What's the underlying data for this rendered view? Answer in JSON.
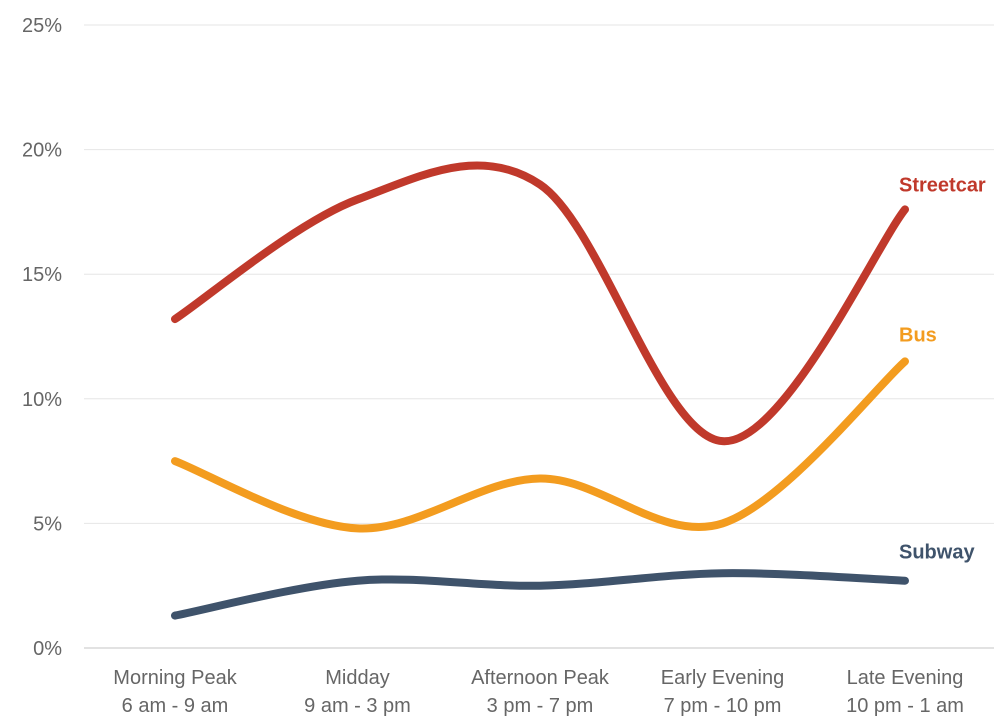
{
  "chart_data": {
    "type": "line",
    "categories": [
      [
        "Morning Peak",
        "6 am - 9 am"
      ],
      [
        "Midday",
        "9 am - 3 pm"
      ],
      [
        "Afternoon Peak",
        "3 pm - 7 pm"
      ],
      [
        "Early Evening",
        "7 pm - 10 pm"
      ],
      [
        "Late Evening",
        "10 pm - 1 am"
      ]
    ],
    "series": [
      {
        "name": "Streetcar",
        "color": "#c0392b",
        "values": [
          13.2,
          18.0,
          18.6,
          8.3,
          17.6
        ]
      },
      {
        "name": "Bus",
        "color": "#f39c1f",
        "values": [
          7.5,
          4.8,
          6.8,
          5.0,
          11.5
        ]
      },
      {
        "name": "Subway",
        "color": "#3f536b",
        "values": [
          1.3,
          2.7,
          2.5,
          3.0,
          2.7
        ]
      }
    ],
    "ylim": [
      0,
      25
    ],
    "yticks": [
      0,
      5,
      10,
      15,
      20,
      25
    ],
    "ytick_labels": [
      "0%",
      "5%",
      "10%",
      "15%",
      "20%",
      "25%"
    ],
    "grid": true,
    "title": "",
    "xlabel": "",
    "ylabel": ""
  }
}
